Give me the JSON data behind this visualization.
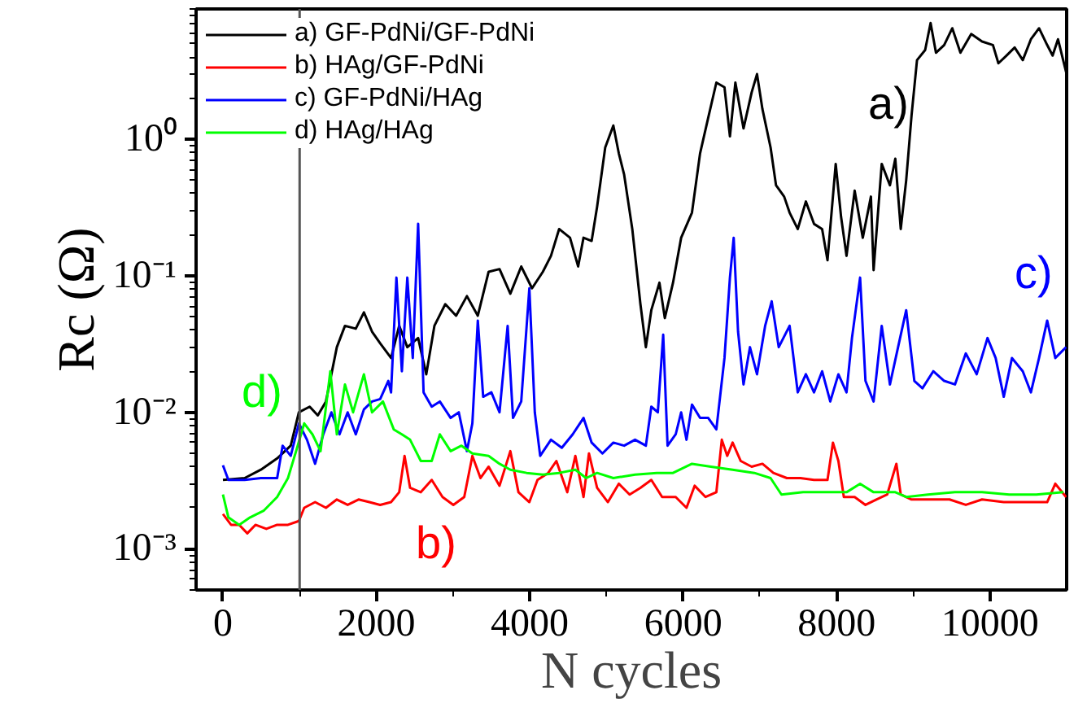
{
  "chart_data": {
    "type": "line",
    "xlabel": "N cycles",
    "ylabel": "Rc (Ω)",
    "log": "y",
    "legend": "top left",
    "grid": false,
    "marker": "none",
    "line_style": "solid",
    "xlim": [
      -350,
      11000
    ],
    "ylim": [
      0.0005,
      9
    ],
    "xticks": [
      0,
      2000,
      4000,
      6000,
      8000,
      10000
    ],
    "yticks": [
      {
        "value": 0.001,
        "label": "10⁻³"
      },
      {
        "value": 0.01,
        "label": "10⁻²"
      },
      {
        "value": 0.1,
        "label": "10⁻¹"
      },
      {
        "value": 1,
        "label": "10⁰"
      }
    ],
    "ref_lines": [
      {
        "axis": "x",
        "value": 1000,
        "label": null,
        "color": "#555555"
      }
    ],
    "annotations": [
      "a)",
      "b)",
      "c)",
      "d)"
    ],
    "series": [
      {
        "name": "a) GF-PdNi/GF-PdNi",
        "color": "#000000",
        "x": [
          0,
          283,
          495,
          707,
          884,
          990,
          1131,
          1237,
          1343,
          1485,
          1591,
          1732,
          1838,
          1944,
          2050,
          2192,
          2298,
          2404,
          2545,
          2651,
          2757,
          2899,
          3040,
          3181,
          3323,
          3464,
          3606,
          3747,
          3889,
          4030,
          4171,
          4277,
          4383,
          4525,
          4631,
          4701,
          4807,
          4878,
          4984,
          5090,
          5161,
          5231,
          5337,
          5443,
          5514,
          5585,
          5691,
          5761,
          5868,
          5974,
          6115,
          6221,
          6327,
          6433,
          6539,
          6610,
          6681,
          6787,
          6893,
          6963,
          7034,
          7140,
          7211,
          7317,
          7388,
          7494,
          7600,
          7706,
          7812,
          7882,
          7989,
          8059,
          8130,
          8236,
          8342,
          8448,
          8483,
          8589,
          8696,
          8766,
          8837,
          8908,
          8978,
          9049,
          9155,
          9226,
          9296,
          9403,
          9509,
          9615,
          9756,
          9897,
          10039,
          10110,
          10215,
          10322,
          10428,
          10534,
          10640,
          10746,
          10817,
          10887,
          10993
        ],
        "values": [
          0.0032,
          0.0033,
          0.0038,
          0.0046,
          0.0057,
          0.01,
          0.011,
          0.0095,
          0.012,
          0.03,
          0.043,
          0.041,
          0.054,
          0.039,
          0.032,
          0.025,
          0.043,
          0.03,
          0.035,
          0.019,
          0.043,
          0.062,
          0.051,
          0.071,
          0.051,
          0.107,
          0.112,
          0.074,
          0.117,
          0.081,
          0.107,
          0.14,
          0.22,
          0.19,
          0.117,
          0.19,
          0.18,
          0.32,
          0.87,
          1.26,
          0.79,
          0.55,
          0.22,
          0.062,
          0.03,
          0.056,
          0.089,
          0.049,
          0.089,
          0.19,
          0.29,
          0.79,
          1.44,
          2.6,
          2.4,
          1.05,
          2.6,
          1.2,
          2.2,
          3.0,
          1.66,
          0.87,
          0.46,
          0.38,
          0.29,
          0.22,
          0.35,
          0.24,
          0.22,
          0.13,
          0.66,
          0.27,
          0.14,
          0.42,
          0.19,
          0.38,
          0.11,
          0.66,
          0.46,
          0.72,
          0.22,
          0.5,
          1.5,
          3.8,
          4.5,
          7.1,
          4.3,
          4.9,
          6.5,
          4.3,
          5.9,
          5.2,
          4.9,
          3.6,
          4.1,
          4.7,
          3.8,
          5.4,
          6.5,
          4.9,
          4.1,
          5.4,
          3.1
        ]
      },
      {
        "name": "b) HAg/GF-PdNi",
        "color": "#ff0000",
        "x": [
          0,
          106,
          212,
          318,
          424,
          566,
          707,
          848,
          990,
          1060,
          1202,
          1343,
          1485,
          1626,
          1768,
          1909,
          2050,
          2192,
          2298,
          2368,
          2440,
          2580,
          2722,
          2863,
          3004,
          3146,
          3252,
          3358,
          3464,
          3606,
          3747,
          3853,
          3995,
          4101,
          4241,
          4347,
          4489,
          4595,
          4701,
          4772,
          4878,
          5019,
          5161,
          5302,
          5443,
          5585,
          5726,
          5903,
          6044,
          6150,
          6292,
          6433,
          6504,
          6575,
          6645,
          6751,
          6893,
          7034,
          7176,
          7352,
          7529,
          7706,
          7882,
          7953,
          8024,
          8095,
          8236,
          8377,
          8519,
          8660,
          8780,
          8837,
          8978,
          9190,
          9473,
          9685,
          9897,
          10180,
          10463,
          10746,
          10852,
          10993
        ],
        "values": [
          0.0018,
          0.0015,
          0.0015,
          0.0013,
          0.0015,
          0.0014,
          0.0015,
          0.0015,
          0.0016,
          0.002,
          0.0022,
          0.002,
          0.0023,
          0.0021,
          0.0023,
          0.0022,
          0.0021,
          0.0022,
          0.0026,
          0.0048,
          0.0028,
          0.0026,
          0.0032,
          0.0024,
          0.0021,
          0.0024,
          0.0048,
          0.0033,
          0.004,
          0.0029,
          0.0052,
          0.0026,
          0.0022,
          0.0032,
          0.0036,
          0.0044,
          0.0026,
          0.0048,
          0.0024,
          0.005,
          0.0028,
          0.0022,
          0.003,
          0.0025,
          0.0028,
          0.0032,
          0.0024,
          0.0024,
          0.002,
          0.0029,
          0.0024,
          0.0026,
          0.0063,
          0.0048,
          0.006,
          0.0044,
          0.004,
          0.0042,
          0.0036,
          0.0033,
          0.0033,
          0.0032,
          0.0032,
          0.006,
          0.0044,
          0.0024,
          0.0024,
          0.0021,
          0.0023,
          0.0025,
          0.0042,
          0.0025,
          0.0023,
          0.0023,
          0.0023,
          0.0021,
          0.0023,
          0.0022,
          0.0022,
          0.0022,
          0.003,
          0.0024
        ]
      },
      {
        "name": "c) GF-PdNi/HAg",
        "color": "#0000ff",
        "x": [
          0,
          71,
          283,
          495,
          707,
          778,
          884,
          990,
          1096,
          1202,
          1308,
          1414,
          1520,
          1626,
          1732,
          1838,
          1944,
          2050,
          2156,
          2192,
          2262,
          2333,
          2404,
          2475,
          2545,
          2616,
          2722,
          2828,
          2969,
          3075,
          3181,
          3252,
          3323,
          3393,
          3500,
          3606,
          3712,
          3782,
          3889,
          3995,
          4066,
          4136,
          4277,
          4418,
          4560,
          4701,
          4807,
          4948,
          5090,
          5231,
          5373,
          5514,
          5585,
          5670,
          5740,
          5797,
          5903,
          5974,
          6044,
          6115,
          6221,
          6327,
          6433,
          6539,
          6610,
          6659,
          6716,
          6787,
          6871,
          6963,
          7069,
          7154,
          7246,
          7388,
          7494,
          7600,
          7706,
          7812,
          7918,
          8024,
          8130,
          8201,
          8307,
          8377,
          8483,
          8589,
          8696,
          8802,
          8908,
          9014,
          9120,
          9261,
          9403,
          9544,
          9685,
          9827,
          9968,
          10074,
          10180,
          10287,
          10428,
          10534,
          10640,
          10746,
          10852,
          10993
        ],
        "values": [
          0.0041,
          0.0032,
          0.0032,
          0.0033,
          0.0033,
          0.0057,
          0.0048,
          0.0083,
          0.0063,
          0.0042,
          0.0069,
          0.01,
          0.0069,
          0.01,
          0.0069,
          0.0105,
          0.012,
          0.0125,
          0.017,
          0.014,
          0.097,
          0.02,
          0.097,
          0.025,
          0.24,
          0.014,
          0.011,
          0.012,
          0.0091,
          0.01,
          0.0052,
          0.0083,
          0.047,
          0.013,
          0.014,
          0.01,
          0.043,
          0.0091,
          0.012,
          0.081,
          0.01,
          0.0048,
          0.0063,
          0.0055,
          0.0069,
          0.0091,
          0.006,
          0.005,
          0.006,
          0.0057,
          0.0063,
          0.0057,
          0.011,
          0.01,
          0.037,
          0.0057,
          0.0069,
          0.01,
          0.0063,
          0.0114,
          0.0091,
          0.0091,
          0.0075,
          0.025,
          0.097,
          0.19,
          0.039,
          0.016,
          0.03,
          0.019,
          0.043,
          0.065,
          0.03,
          0.043,
          0.014,
          0.019,
          0.014,
          0.02,
          0.012,
          0.019,
          0.014,
          0.035,
          0.097,
          0.017,
          0.012,
          0.043,
          0.016,
          0.03,
          0.056,
          0.017,
          0.015,
          0.02,
          0.017,
          0.016,
          0.027,
          0.019,
          0.035,
          0.025,
          0.013,
          0.025,
          0.02,
          0.014,
          0.025,
          0.047,
          0.025,
          0.03
        ]
      },
      {
        "name": "d) HAg/HAg",
        "color": "#00ff00",
        "x": [
          0,
          71,
          212,
          354,
          530,
          707,
          848,
          954,
          1060,
          1167,
          1273,
          1400,
          1485,
          1591,
          1697,
          1838,
          1944,
          2086,
          2227,
          2333,
          2440,
          2580,
          2722,
          2828,
          2969,
          3110,
          3252,
          3464,
          3606,
          3747,
          3959,
          4171,
          4383,
          4595,
          4736,
          4878,
          5090,
          5373,
          5656,
          5868,
          6115,
          6362,
          6645,
          6928,
          7140,
          7282,
          7564,
          7918,
          8130,
          8307,
          8483,
          8766,
          8908,
          9190,
          9544,
          9897,
          10251,
          10605,
          10958
        ],
        "values": [
          0.0025,
          0.0017,
          0.0015,
          0.0017,
          0.0019,
          0.0024,
          0.0033,
          0.0052,
          0.0083,
          0.0069,
          0.0052,
          0.02,
          0.0069,
          0.016,
          0.01,
          0.019,
          0.01,
          0.012,
          0.0075,
          0.0069,
          0.0063,
          0.0044,
          0.0044,
          0.0069,
          0.0052,
          0.0057,
          0.005,
          0.0048,
          0.0042,
          0.0038,
          0.0036,
          0.0035,
          0.0036,
          0.0038,
          0.0033,
          0.0036,
          0.0033,
          0.0035,
          0.0036,
          0.0036,
          0.0042,
          0.004,
          0.0038,
          0.0036,
          0.0033,
          0.0025,
          0.0026,
          0.0026,
          0.0026,
          0.003,
          0.0026,
          0.0026,
          0.0024,
          0.0025,
          0.0026,
          0.0026,
          0.0025,
          0.0025,
          0.0026
        ]
      }
    ]
  }
}
